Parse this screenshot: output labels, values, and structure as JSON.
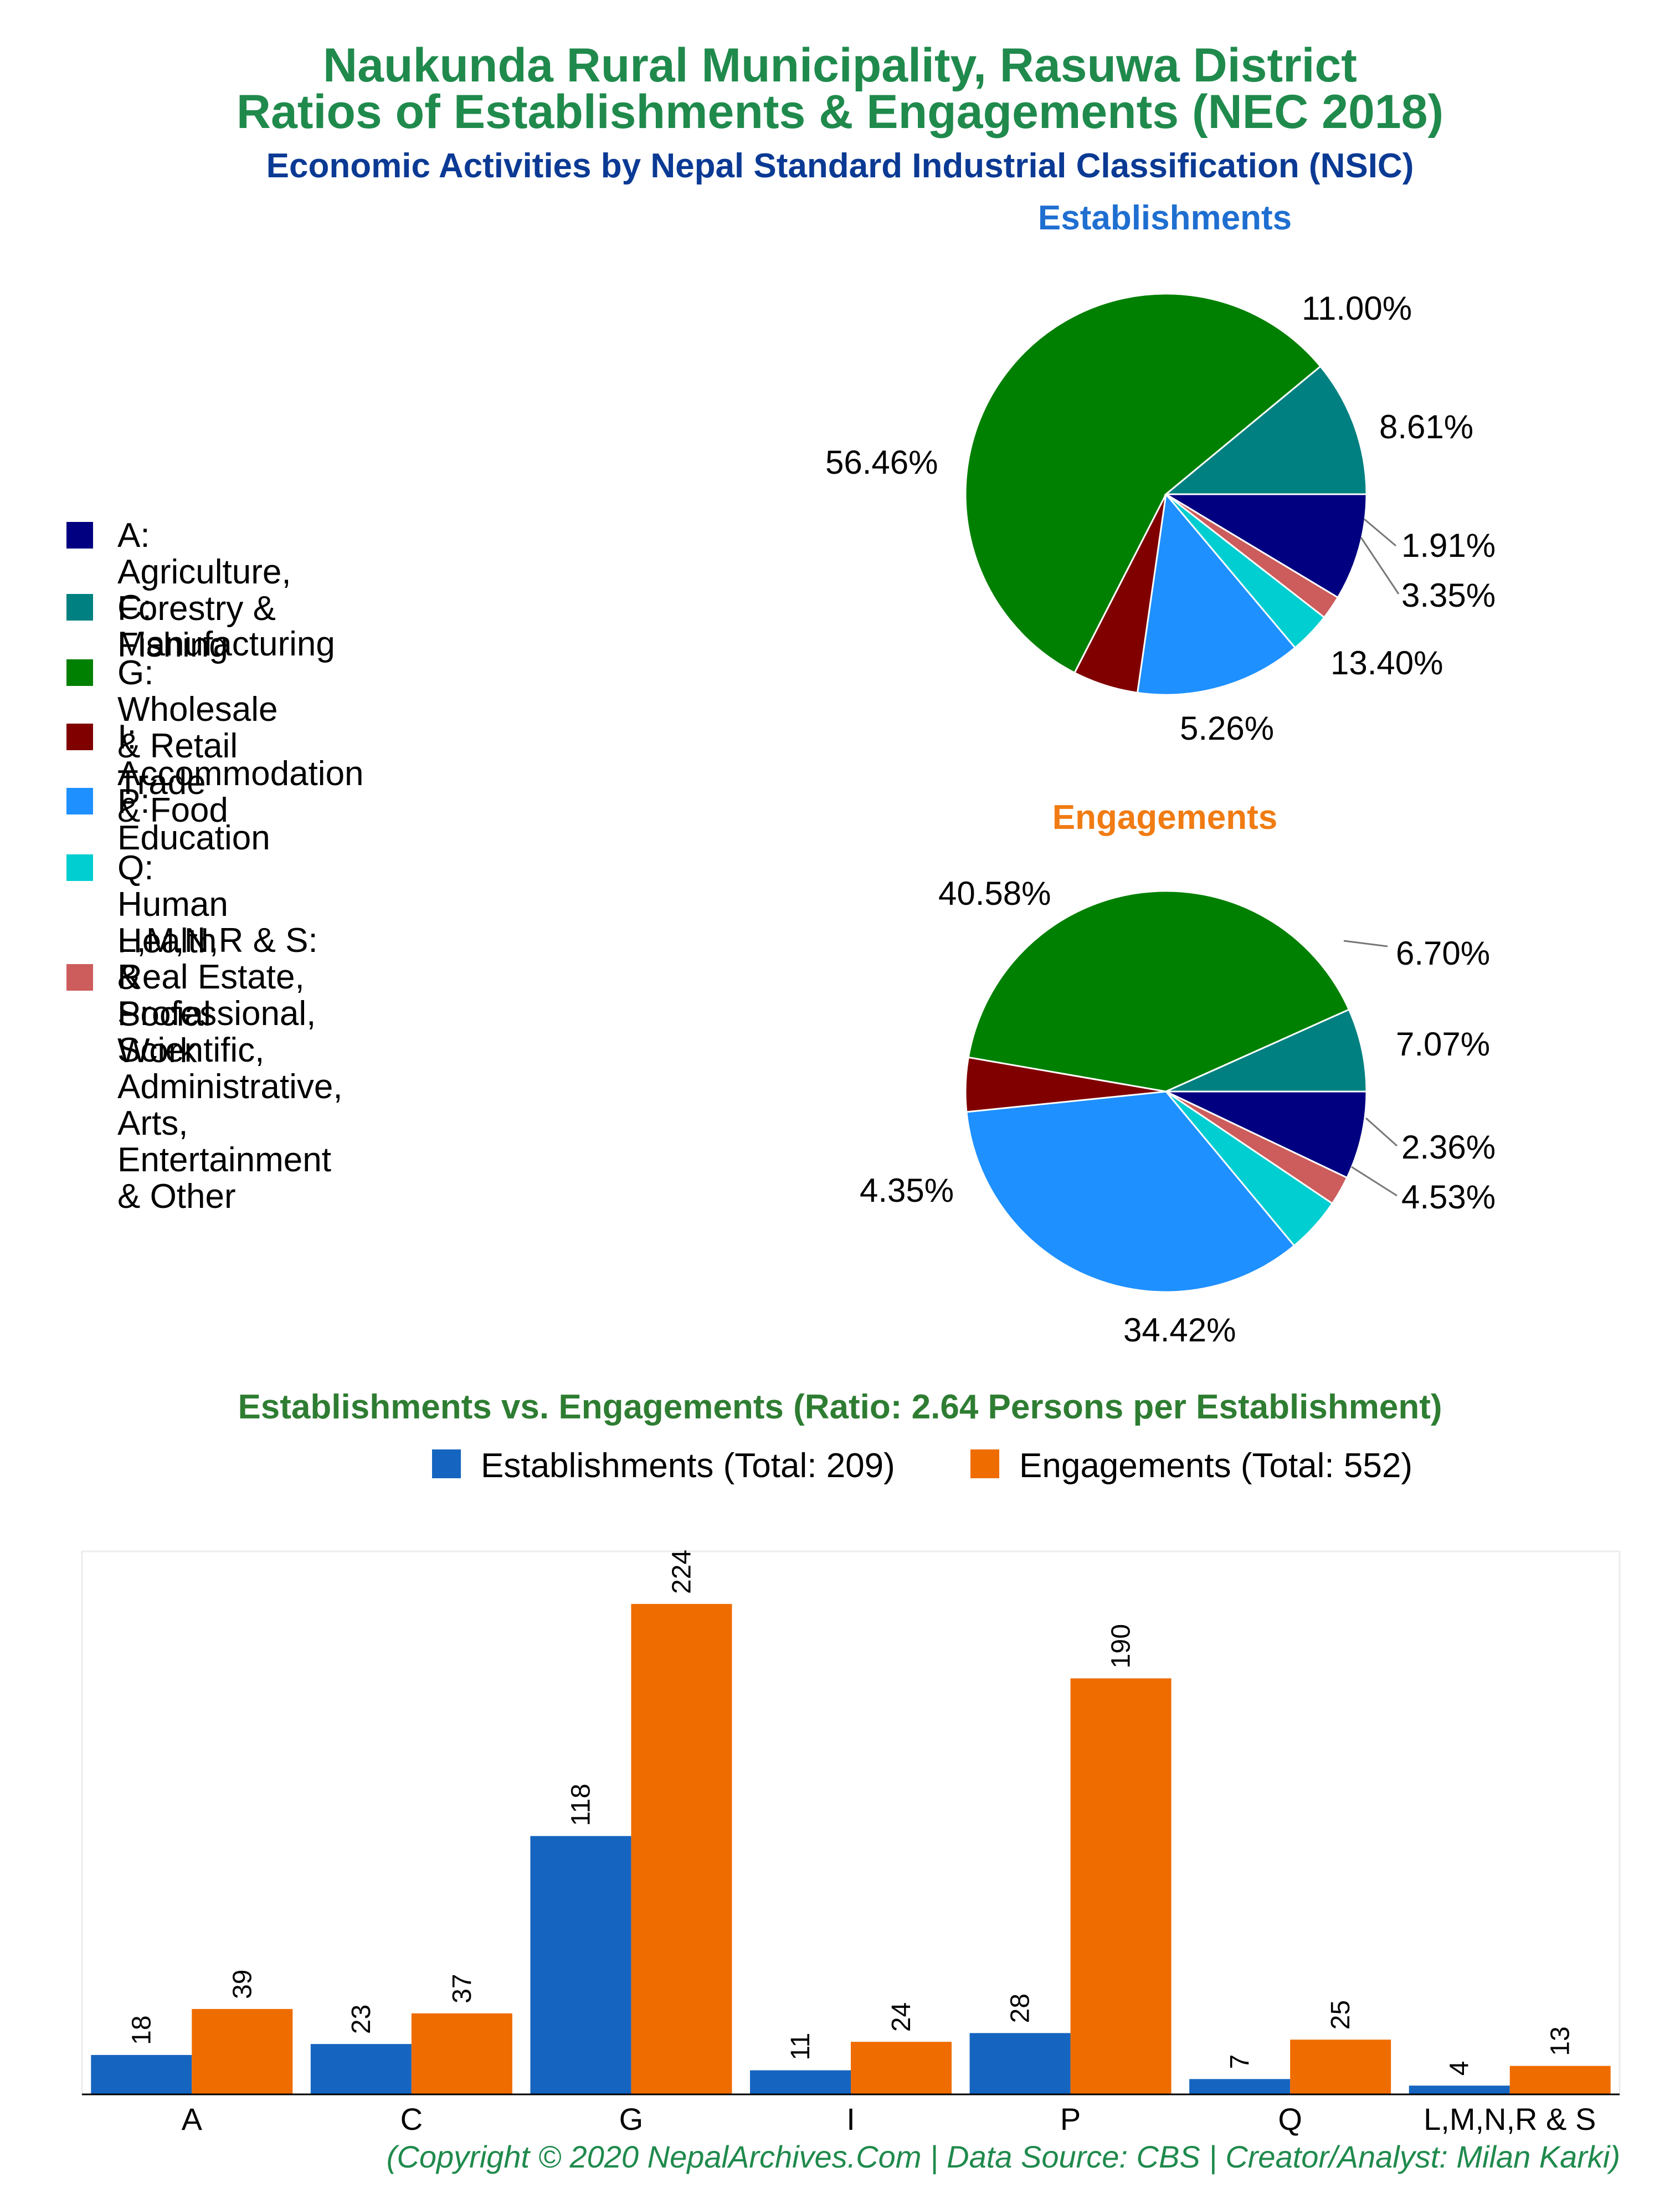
{
  "titles": {
    "line1": "Naukunda Rural Municipality, Rasuwa District",
    "line2": "Ratios of Establishments & Engagements (NEC 2018)",
    "subtitle": "Economic Activities by Nepal Standard Industrial Classification (NSIC)"
  },
  "legend": [
    {
      "label": "A: Agriculture, Forestry & Fishing",
      "color": "#000080"
    },
    {
      "label": "C: Manufacturing",
      "color": "#008080"
    },
    {
      "label": "G: Wholesale & Retail Trade",
      "color": "#008000"
    },
    {
      "label": "I: Accommodation & Food",
      "color": "#800000"
    },
    {
      "label": "P: Education",
      "color": "#1e90ff"
    },
    {
      "label": "Q: Human Health & Social Work",
      "color": "#00ced1"
    },
    {
      "label": "L,M,N,R & S: Real Estate, Professional,\nScientific, Administrative, Arts,\nEntertainment & Other",
      "color": "#cd5c5c"
    }
  ],
  "chart_data": [
    {
      "type": "pie",
      "title": "Establishments",
      "slices": [
        {
          "category": "A",
          "value": 8.61,
          "label": "8.61%"
        },
        {
          "category": "L,M,N,R & S",
          "value": 1.91,
          "label": "1.91%"
        },
        {
          "category": "Q",
          "value": 3.35,
          "label": "3.35%"
        },
        {
          "category": "P",
          "value": 13.4,
          "label": "13.40%"
        },
        {
          "category": "I",
          "value": 5.26,
          "label": "5.26%"
        },
        {
          "category": "G",
          "value": 56.46,
          "label": "56.46%"
        },
        {
          "category": "C",
          "value": 11.0,
          "label": "11.00%"
        }
      ]
    },
    {
      "type": "pie",
      "title": "Engagements",
      "slices": [
        {
          "category": "A",
          "value": 7.07,
          "label": "7.07%"
        },
        {
          "category": "L,M,N,R & S",
          "value": 2.36,
          "label": "2.36%"
        },
        {
          "category": "Q",
          "value": 4.53,
          "label": "4.53%"
        },
        {
          "category": "P",
          "value": 34.42,
          "label": "34.42%"
        },
        {
          "category": "I",
          "value": 4.35,
          "label": "4.35%"
        },
        {
          "category": "G",
          "value": 40.58,
          "label": "40.58%"
        },
        {
          "category": "C",
          "value": 6.7,
          "label": "6.70%"
        }
      ]
    },
    {
      "type": "bar",
      "title": "Establishments vs. Engagements (Ratio: 2.64 Persons per Establishment)",
      "categories": [
        "A",
        "C",
        "G",
        "I",
        "P",
        "Q",
        "L,M,N,R & S"
      ],
      "series": [
        {
          "name": "Establishments (Total: 209)",
          "values": [
            18,
            23,
            118,
            11,
            28,
            7,
            4
          ],
          "color": "#1565c0"
        },
        {
          "name": "Engagements (Total: 552)",
          "values": [
            39,
            37,
            224,
            24,
            190,
            25,
            13
          ],
          "color": "#ef6c00"
        }
      ],
      "ylim": [
        0,
        248
      ],
      "grid": false,
      "legend_position": "top"
    }
  ],
  "footer": "(Copyright © 2020 NepalArchives.Com | Data Source: CBS | Creator/Analyst: Milan Karki)"
}
